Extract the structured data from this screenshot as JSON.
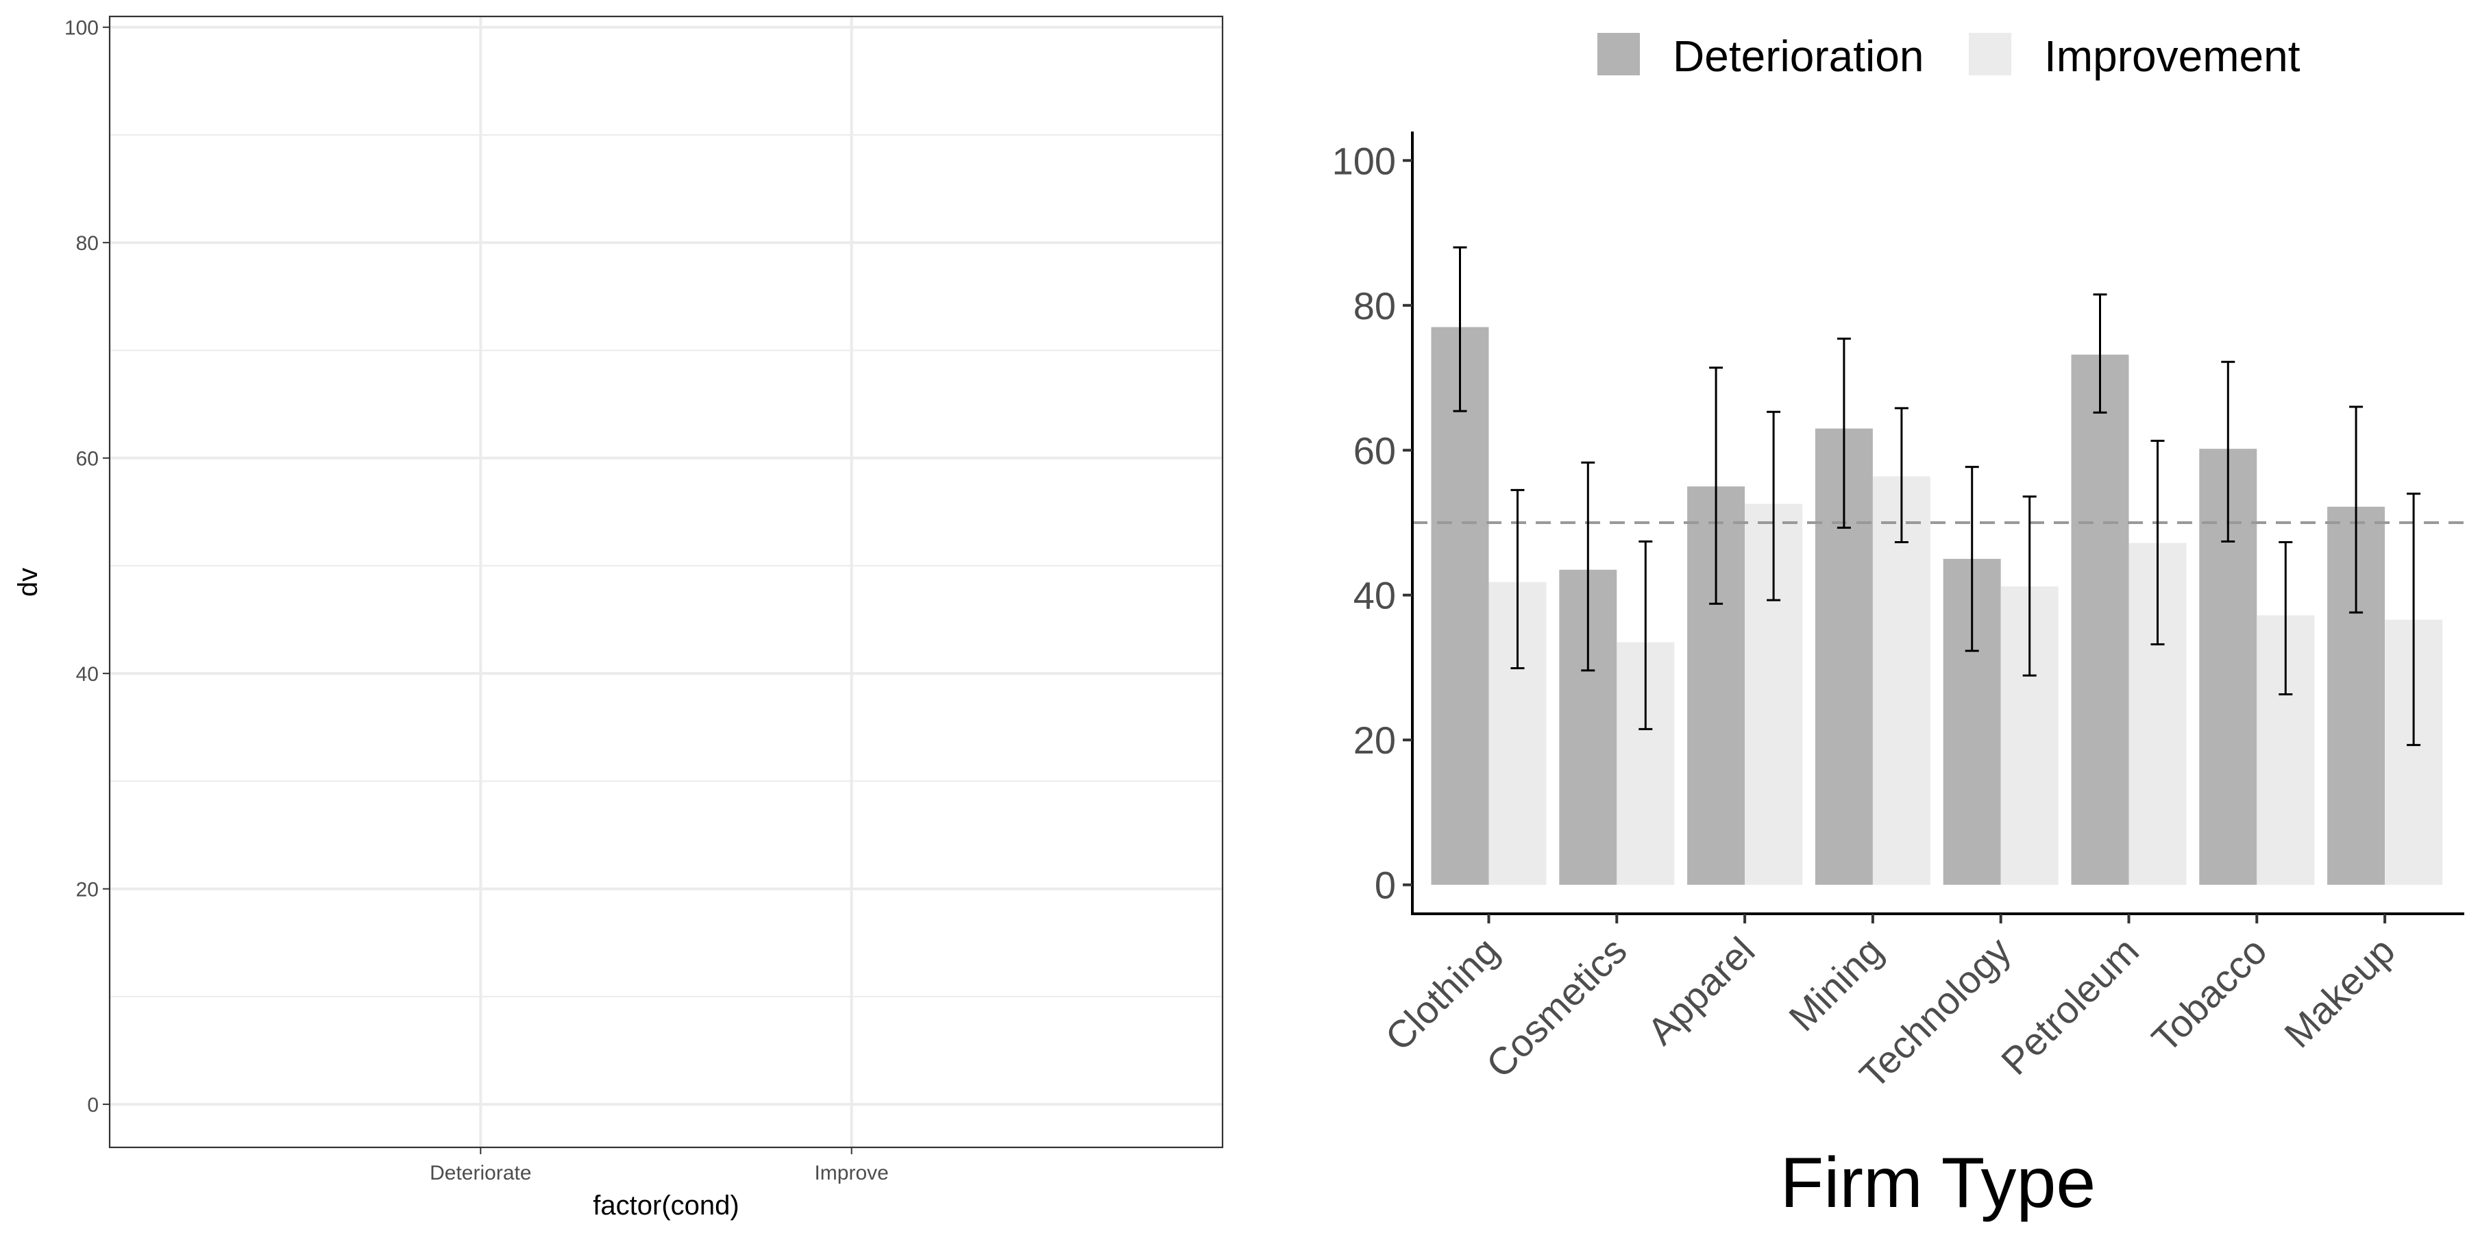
{
  "chart_data": [
    {
      "type": "scatter",
      "categories": [
        "Deteriorate",
        "Improve"
      ],
      "xlabel": "factor(cond)",
      "ylabel": "dv",
      "ylim": [
        -4,
        101
      ],
      "yticks": [
        0,
        20,
        40,
        60,
        80,
        100
      ],
      "grid": true,
      "points": []
    },
    {
      "type": "bar",
      "categories": [
        "Clothing",
        "Cosmetics",
        "Apparel",
        "Mining",
        "Technology",
        "Petroleum",
        "Tobacco",
        "Makeup"
      ],
      "xlabel": "Firm Type",
      "ylabel": "",
      "ylim": [
        -4,
        104
      ],
      "yticks": [
        0,
        20,
        40,
        60,
        80,
        100
      ],
      "grid": false,
      "reference_line": 50,
      "legend": {
        "position": "top"
      },
      "series": [
        {
          "name": "Deterioration",
          "color": "#b3b3b3",
          "values": [
            77,
            43.5,
            55,
            63,
            45,
            73.2,
            60.2,
            52.2
          ],
          "error_low": [
            65.4,
            29.6,
            38.8,
            49.3,
            32.3,
            65.2,
            47.4,
            37.6
          ],
          "error_high": [
            88,
            58.3,
            71.4,
            75.4,
            57.7,
            81.5,
            72.2,
            66
          ]
        },
        {
          "name": "Improvement",
          "color": "#ebebeb",
          "values": [
            41.8,
            33.5,
            52.6,
            56.4,
            41.2,
            47.2,
            37.2,
            36.6
          ],
          "error_low": [
            29.9,
            21.5,
            39.3,
            47.3,
            28.9,
            33.2,
            26.3,
            19.3
          ],
          "error_high": [
            54.5,
            47.4,
            65.3,
            65.8,
            53.6,
            61.3,
            47.3,
            54
          ]
        }
      ]
    }
  ]
}
